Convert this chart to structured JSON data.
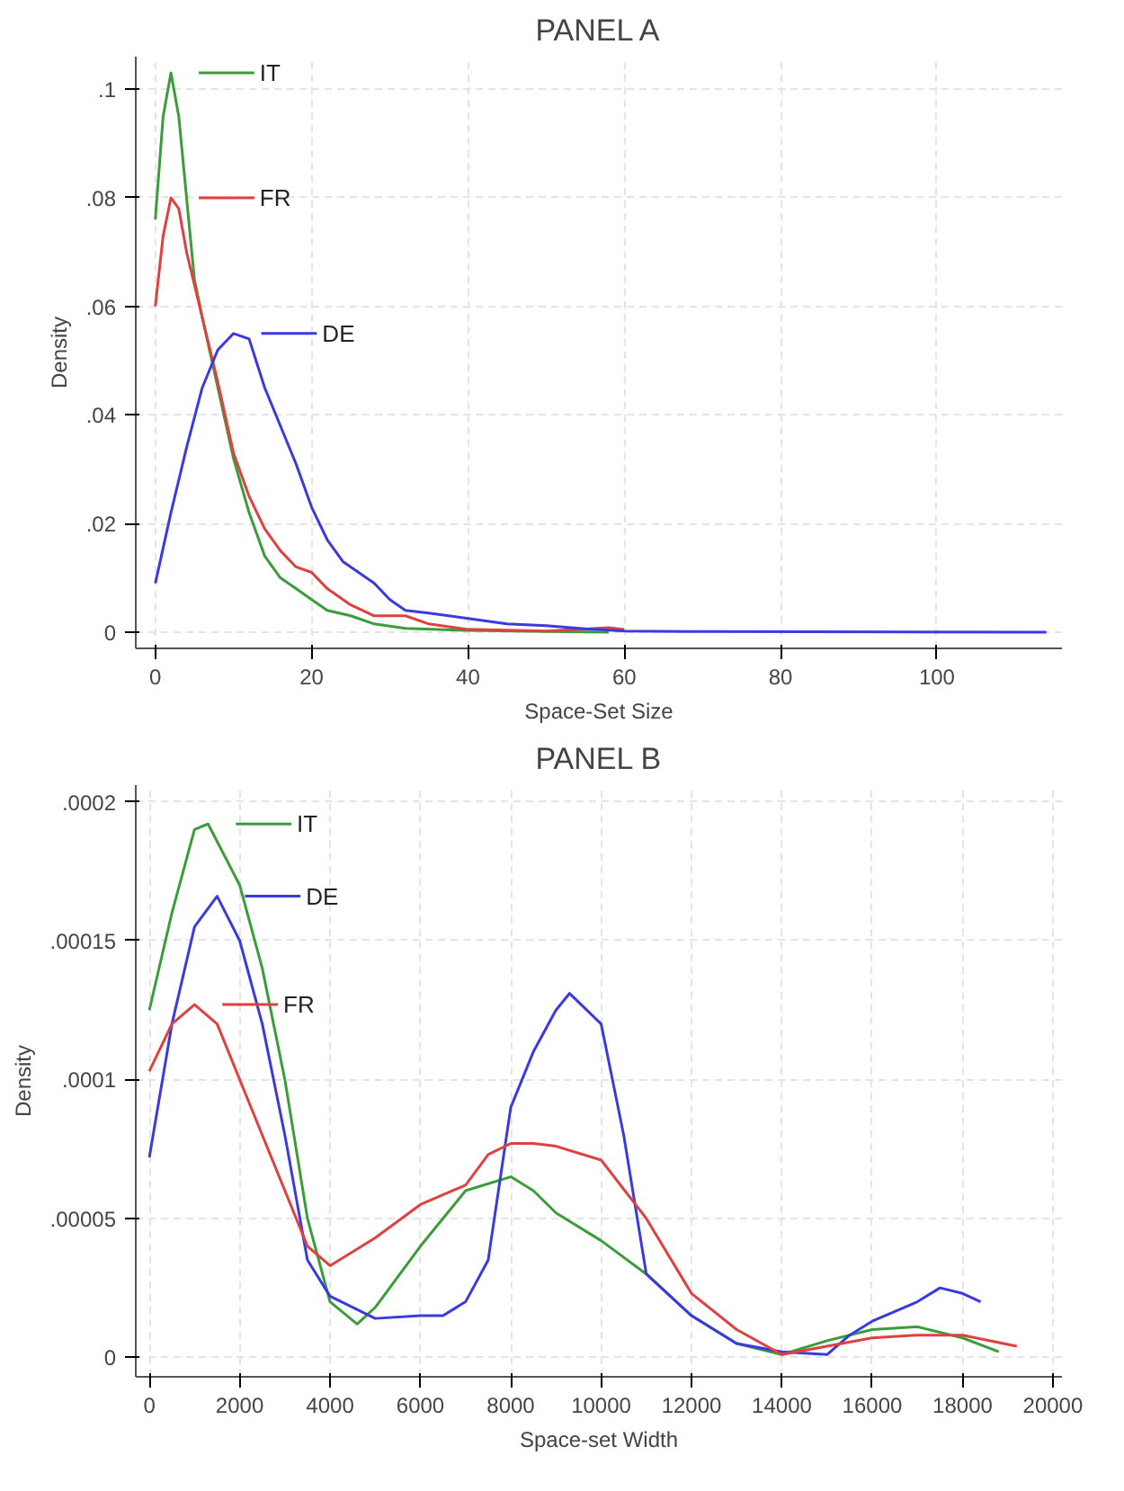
{
  "chart_data": [
    {
      "type": "line",
      "title": "PANEL A",
      "xlabel": "Space-Set Size",
      "ylabel": "Density",
      "grid": true,
      "legend": "top left",
      "xlim": [
        -2.5,
        116
      ],
      "ylim": [
        -0.003,
        0.106
      ],
      "xticks": [
        0,
        20,
        40,
        60,
        80,
        100
      ],
      "yticks": [
        {
          "value": 0,
          "label": "0"
        },
        {
          "value": 0.02,
          "label": ".02"
        },
        {
          "value": 0.04,
          "label": ".04"
        },
        {
          "value": 0.06,
          "label": ".06"
        },
        {
          "value": 0.08,
          "label": ".08"
        },
        {
          "value": 0.1,
          "label": ".1"
        }
      ],
      "series": [
        {
          "name": "IT",
          "color": "#3a9d3a",
          "x": [
            0,
            1,
            2,
            3,
            4,
            5,
            6,
            8,
            10,
            12,
            14,
            16,
            18,
            20,
            22,
            25,
            28,
            32,
            40,
            50,
            58
          ],
          "values": [
            0.076,
            0.095,
            0.103,
            0.095,
            0.08,
            0.065,
            0.058,
            0.045,
            0.032,
            0.022,
            0.014,
            0.01,
            0.008,
            0.006,
            0.004,
            0.003,
            0.0015,
            0.0007,
            0.0003,
            0.0001,
            0
          ]
        },
        {
          "name": "FR",
          "color": "#e04040",
          "x": [
            0,
            1,
            2,
            3,
            4,
            5,
            6,
            8,
            10,
            12,
            14,
            16,
            18,
            20,
            22,
            25,
            28,
            32,
            35,
            40,
            50,
            58,
            60
          ],
          "values": [
            0.06,
            0.073,
            0.08,
            0.078,
            0.07,
            0.064,
            0.058,
            0.046,
            0.033,
            0.025,
            0.019,
            0.015,
            0.012,
            0.011,
            0.008,
            0.005,
            0.003,
            0.003,
            0.0015,
            0.0005,
            0.0002,
            0.0008,
            0.0005
          ]
        },
        {
          "name": "DE",
          "color": "#3a3ae0",
          "x": [
            0,
            2,
            4,
            6,
            8,
            10,
            12,
            14,
            16,
            18,
            20,
            22,
            24,
            26,
            28,
            30,
            32,
            35,
            40,
            45,
            50,
            55,
            60,
            70,
            114
          ],
          "values": [
            0.009,
            0.022,
            0.034,
            0.045,
            0.052,
            0.055,
            0.054,
            0.045,
            0.038,
            0.031,
            0.023,
            0.017,
            0.013,
            0.011,
            0.009,
            0.006,
            0.004,
            0.0035,
            0.0025,
            0.0015,
            0.0012,
            0.0006,
            0.0002,
            0.0001,
            0
          ]
        }
      ]
    },
    {
      "type": "line",
      "title": "PANEL B",
      "xlabel": "Space-set Width",
      "ylabel": "Density",
      "grid": true,
      "legend": "top left",
      "xlim": [
        -300,
        20200
      ],
      "ylim": [
        -7e-06,
        0.000206
      ],
      "xticks": [
        0,
        2000,
        4000,
        6000,
        8000,
        10000,
        12000,
        14000,
        16000,
        18000,
        20000
      ],
      "yticks": [
        {
          "value": 0,
          "label": "0"
        },
        {
          "value": 5e-05,
          "label": ".00005"
        },
        {
          "value": 0.0001,
          "label": ".0001"
        },
        {
          "value": 0.00015,
          "label": ".00015"
        },
        {
          "value": 0.0002,
          "label": ".0002"
        }
      ],
      "series": [
        {
          "name": "IT",
          "color": "#3a9d3a",
          "x": [
            0,
            500,
            1000,
            1300,
            2000,
            2500,
            3000,
            3500,
            4000,
            4600,
            5000,
            6000,
            7000,
            8000,
            8500,
            9000,
            10000,
            11000,
            12000,
            13000,
            14000,
            15000,
            16000,
            17000,
            18000,
            18800
          ],
          "values": [
            0.000125,
            0.00016,
            0.00019,
            0.000192,
            0.00017,
            0.00014,
            0.0001,
            5e-05,
            2e-05,
            1.2e-05,
            1.8e-05,
            4e-05,
            6e-05,
            6.5e-05,
            6e-05,
            5.2e-05,
            4.2e-05,
            3e-05,
            1.5e-05,
            5e-06,
            1e-06,
            6e-06,
            1e-05,
            1.1e-05,
            7e-06,
            2e-06
          ]
        },
        {
          "name": "DE",
          "color": "#3a3ae0",
          "x": [
            0,
            500,
            1000,
            1500,
            2000,
            2500,
            3000,
            3500,
            4000,
            5000,
            6000,
            6500,
            7000,
            7500,
            8000,
            8500,
            9000,
            9300,
            10000,
            10500,
            11000,
            12000,
            13000,
            14000,
            15000,
            15500,
            16000,
            17000,
            17500,
            18000,
            18400
          ],
          "values": [
            7.2e-05,
            0.00012,
            0.000155,
            0.000166,
            0.00015,
            0.00012,
            8e-05,
            3.5e-05,
            2.2e-05,
            1.4e-05,
            1.5e-05,
            1.5e-05,
            2e-05,
            3.5e-05,
            9e-05,
            0.00011,
            0.000125,
            0.000131,
            0.00012,
            8e-05,
            3e-05,
            1.5e-05,
            5e-06,
            2e-06,
            1e-06,
            8e-06,
            1.3e-05,
            2e-05,
            2.5e-05,
            2.3e-05,
            2e-05
          ]
        },
        {
          "name": "FR",
          "color": "#e04040",
          "x": [
            0,
            500,
            1000,
            1500,
            2000,
            2500,
            3000,
            3500,
            4000,
            5000,
            6000,
            7000,
            7500,
            8000,
            8500,
            9000,
            10000,
            11000,
            12000,
            13000,
            14000,
            15000,
            16000,
            17000,
            18000,
            19200
          ],
          "values": [
            0.000103,
            0.00012,
            0.000127,
            0.00012,
            0.0001,
            8e-05,
            6e-05,
            4e-05,
            3.3e-05,
            4.3e-05,
            5.5e-05,
            6.2e-05,
            7.3e-05,
            7.7e-05,
            7.7e-05,
            7.6e-05,
            7.1e-05,
            5e-05,
            2.3e-05,
            1e-05,
            1e-06,
            4e-06,
            7e-06,
            8e-06,
            8e-06,
            4e-06
          ]
        }
      ]
    }
  ]
}
